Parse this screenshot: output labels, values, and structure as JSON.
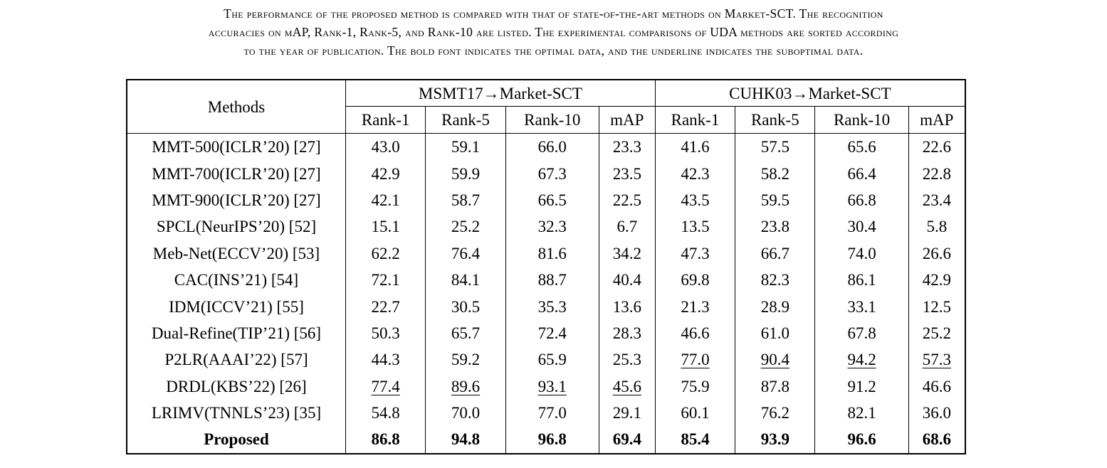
{
  "caption": {
    "line1": "The performance of the proposed method is compared with that of state-of-the-art methods on Market-SCT. The recognition",
    "line2": "accuracies on mAP, Rank-1, Rank-5, and Rank-10 are listed. The experimental comparisons of UDA methods are sorted according",
    "line3": "to the year of publication. The bold font indicates the optimal data, and the underline indicates the suboptimal data."
  },
  "table": {
    "methods_header": "Methods",
    "groups": [
      "MSMT17→Market-SCT",
      "CUHK03→Market-SCT"
    ],
    "metrics": [
      "Rank-1",
      "Rank-5",
      "Rank-10",
      "mAP",
      "Rank-1",
      "Rank-5",
      "Rank-10",
      "mAP"
    ],
    "rows": [
      {
        "method": "MMT-500(ICLR’20) [27]",
        "values": [
          "43.0",
          "59.1",
          "66.0",
          "23.3",
          "41.6",
          "57.5",
          "65.6",
          "22.6"
        ]
      },
      {
        "method": "MMT-700(ICLR’20) [27]",
        "values": [
          "42.9",
          "59.9",
          "67.3",
          "23.5",
          "42.3",
          "58.2",
          "66.4",
          "22.8"
        ]
      },
      {
        "method": "MMT-900(ICLR’20) [27]",
        "values": [
          "42.1",
          "58.7",
          "66.5",
          "22.5",
          "43.5",
          "59.5",
          "66.8",
          "23.4"
        ]
      },
      {
        "method": "SPCL(NeurIPS’20) [52]",
        "values": [
          "15.1",
          "25.2",
          "32.3",
          "6.7",
          "13.5",
          "23.8",
          "30.4",
          "5.8"
        ]
      },
      {
        "method": "Meb-Net(ECCV’20) [53]",
        "values": [
          "62.2",
          "76.4",
          "81.6",
          "34.2",
          "47.3",
          "66.7",
          "74.0",
          "26.6"
        ]
      },
      {
        "method": "CAC(INS’21) [54]",
        "values": [
          "72.1",
          "84.1",
          "88.7",
          "40.4",
          "69.8",
          "82.3",
          "86.1",
          "42.9"
        ]
      },
      {
        "method": "IDM(ICCV’21) [55]",
        "values": [
          "22.7",
          "30.5",
          "35.3",
          "13.6",
          "21.3",
          "28.9",
          "33.1",
          "12.5"
        ]
      },
      {
        "method": "Dual-Refine(TIP’21) [56]",
        "values": [
          "50.3",
          "65.7",
          "72.4",
          "28.3",
          "46.6",
          "61.0",
          "67.8",
          "25.2"
        ]
      },
      {
        "method": "P2LR(AAAI’22) [57]",
        "values": [
          "44.3",
          "59.2",
          "65.9",
          "25.3",
          "77.0",
          "90.4",
          "94.2",
          "57.3"
        ]
      },
      {
        "method": "DRDL(KBS’22) [26]",
        "values": [
          "77.4",
          "89.6",
          "93.1",
          "45.6",
          "75.9",
          "87.8",
          "91.2",
          "46.6"
        ]
      },
      {
        "method": "LRIMV(TNNLS’23) [35]",
        "values": [
          "54.8",
          "70.0",
          "77.0",
          "29.1",
          "60.1",
          "76.2",
          "82.1",
          "36.0"
        ]
      },
      {
        "method": "Proposed",
        "values": [
          "86.8",
          "94.8",
          "96.8",
          "69.4",
          "85.4",
          "93.9",
          "96.6",
          "68.6"
        ]
      }
    ],
    "underlined": [
      [
        8,
        4
      ],
      [
        8,
        5
      ],
      [
        8,
        6
      ],
      [
        8,
        7
      ],
      [
        9,
        0
      ],
      [
        9,
        1
      ],
      [
        9,
        2
      ],
      [
        9,
        3
      ]
    ],
    "bold_row": 11
  }
}
